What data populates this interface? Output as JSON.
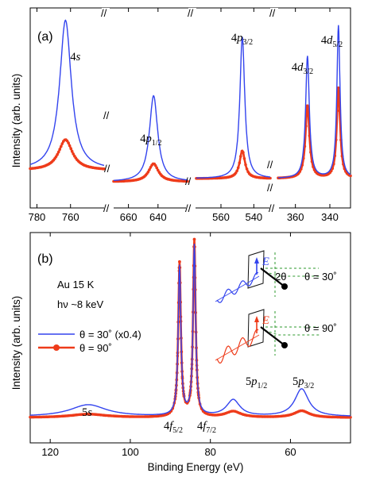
{
  "colors": {
    "theta30": "#3344ee",
    "theta90": "#ee3b1a",
    "axis": "#000000",
    "guide": "#2e9a2e"
  },
  "ylabel": "Intensity (arb. units)",
  "xlabel": "Binding Energy (eV)",
  "chart_data": [
    {
      "panel": "(a)",
      "type": "line",
      "broken_x_axis": true,
      "axis_breaks": [
        "//",
        "//",
        "//",
        "//"
      ],
      "segments": [
        {
          "name": "4s",
          "xlim": [
            784,
            740
          ],
          "ticks": [
            "780",
            "760"
          ],
          "peaks": [
            {
              "label_main": "4",
              "label_italic": "s",
              "label_sub": "",
              "x": 763
            }
          ]
        },
        {
          "name": "4p1/2",
          "xlim": [
            670,
            620
          ],
          "ticks": [
            "660",
            "640"
          ],
          "peaks": [
            {
              "label_main": "4",
              "label_italic": "p",
              "label_sub": "1/2",
              "x": 643
            }
          ]
        },
        {
          "name": "4p3/2",
          "xlim": [
            575,
            530
          ],
          "ticks": [
            "560",
            "540"
          ],
          "peaks": [
            {
              "label_main": "4",
              "label_italic": "p",
              "label_sub": "3/2",
              "x": 547
            }
          ]
        },
        {
          "name": "4d",
          "xlim": [
            370,
            328
          ],
          "ticks": [
            "360",
            "340"
          ],
          "peaks": [
            {
              "label_main": "4",
              "label_italic": "d",
              "label_sub": "3/2",
              "x": 353
            },
            {
              "label_main": "4",
              "label_italic": "d",
              "label_sub": "5/2",
              "x": 335
            }
          ]
        }
      ],
      "series": [
        {
          "name": "θ = 30˚",
          "segments": [
            {
              "baseline": 1.0,
              "peaks": [
                [
                  763,
                  10.8,
                  4.2
                ]
              ]
            },
            {
              "baseline": 0.17,
              "peaks": [
                [
                  643,
                  6.2,
                  3.4
                ]
              ]
            },
            {
              "baseline": 0.4,
              "peaks": [
                [
                  547,
                  10.2,
                  1.8
                ]
              ]
            },
            {
              "baseline": 0.4,
              "peaks": [
                [
                  353,
                  8.8,
                  1.3
                ],
                [
                  335,
                  11.0,
                  1.1
                ]
              ]
            }
          ]
        },
        {
          "name": "θ = 90˚",
          "segments": [
            {
              "baseline": 1.0,
              "peaks": [
                [
                  763,
                  2.2,
                  5.0
                ]
              ]
            },
            {
              "baseline": 0.17,
              "peaks": [
                [
                  643,
                  1.3,
                  4.0
                ]
              ]
            },
            {
              "baseline": 0.4,
              "peaks": [
                [
                  547,
                  2.0,
                  2.0
                ]
              ]
            },
            {
              "baseline": 0.4,
              "peaks": [
                [
                  353,
                  5.3,
                  1.4
                ],
                [
                  335,
                  6.5,
                  1.2
                ]
              ]
            }
          ]
        }
      ]
    },
    {
      "panel": "(b)",
      "type": "line",
      "xlim": [
        125,
        45
      ],
      "xticks": [
        "120",
        "100",
        "80",
        "60"
      ],
      "sample": "Au  15 K",
      "photon": "hν ~8 keV",
      "legend": {
        "placement": "left",
        "entries": [
          "θ = 30˚ (x0.4)",
          "θ = 90˚"
        ]
      },
      "series": [
        {
          "name": "θ = 30˚ (x0.4)",
          "baseline": 0.1,
          "peaks": [
            [
              110.5,
              0.8,
              5.5
            ],
            [
              87.7,
              10.0,
              0.4
            ],
            [
              84.0,
              11.4,
              0.38
            ],
            [
              74.3,
              1.1,
              2.0
            ],
            [
              57.2,
              1.85,
              2.1
            ]
          ]
        },
        {
          "name": "θ = 90˚",
          "baseline": 0.04,
          "peaks": [
            [
              110.5,
              0.23,
              5.5
            ],
            [
              87.7,
              10.3,
              0.4
            ],
            [
              84.0,
              11.8,
              0.38
            ],
            [
              74.3,
              0.4,
              2.3
            ],
            [
              57.2,
              0.45,
              2.3
            ]
          ]
        }
      ],
      "peak_labels": [
        {
          "main": "5",
          "italic": "s",
          "sub": "",
          "x": 110.5
        },
        {
          "main": "4",
          "italic": "f",
          "sub": "5/2",
          "x": 87.7
        },
        {
          "main": "4",
          "italic": "f",
          "sub": "7/2",
          "x": 84.0
        },
        {
          "main": "5",
          "italic": "p",
          "sub": "1/2",
          "x": 74.3
        },
        {
          "main": "5",
          "italic": "p",
          "sub": "3/2",
          "x": 57.2
        }
      ],
      "inset": {
        "label_30": "θ = 30˚",
        "label_90": "θ = 90˚",
        "efield": "E",
        "angle": "2θ"
      }
    }
  ]
}
